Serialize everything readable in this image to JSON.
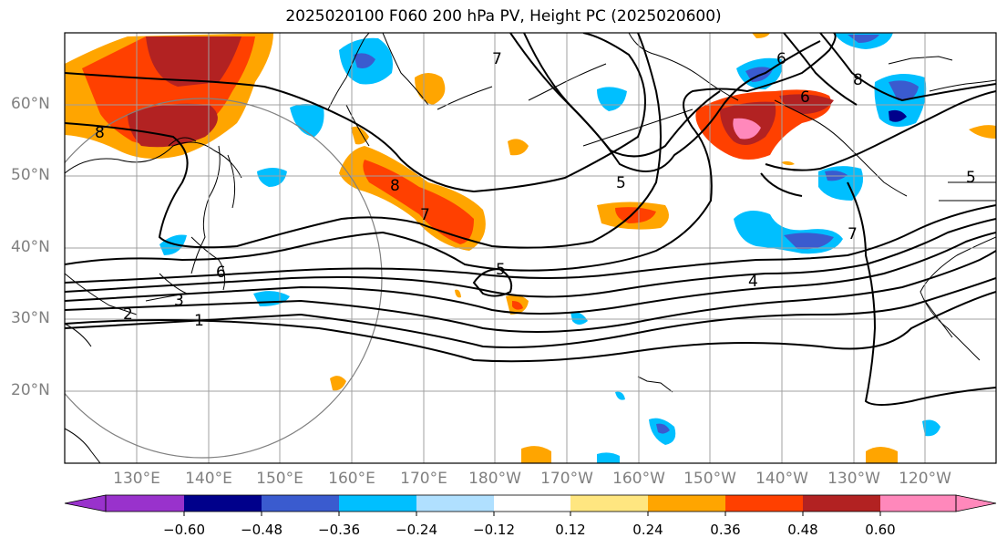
{
  "title": "2025020100 F060 200 hPa PV, Height PC (2025020600)",
  "lat_labels": [
    "60°N",
    "50°N",
    "40°N",
    "30°N",
    "20°N"
  ],
  "lon_labels": [
    "130°E",
    "140°E",
    "150°E",
    "160°E",
    "170°E",
    "180°W",
    "170°W",
    "160°W",
    "150°W",
    "140°W",
    "130°W",
    "120°W"
  ],
  "contour_labels": [
    "8",
    "7",
    "6",
    "5",
    "4",
    "3",
    "2",
    "1",
    "8",
    "7",
    "6",
    "5",
    "6",
    "8",
    "7",
    "5"
  ],
  "colorbar": {
    "ticks": [
      "−0.60",
      "−0.48",
      "−0.36",
      "−0.24",
      "−0.12",
      "0.12",
      "0.24",
      "0.36",
      "0.48",
      "0.60"
    ],
    "colors": [
      "#9932cc",
      "#00008b",
      "#3a5bcf",
      "#00bfff",
      "#b0e0ff",
      "#ffffff",
      "#ffe680",
      "#ffa500",
      "#ff4000",
      "#b22222",
      "#ff88bb"
    ]
  },
  "colors": {
    "pv_positive_light": "#ffe680",
    "pv_positive_orange": "#ffa500",
    "pv_positive_red": "#ff4000",
    "pv_positive_dark": "#b22222",
    "pv_positive_pink": "#ff88bb",
    "pv_negative_light": "#00bfff",
    "pv_negative_blue": "#3a5bcf",
    "pv_negative_dark": "#00008b"
  }
}
